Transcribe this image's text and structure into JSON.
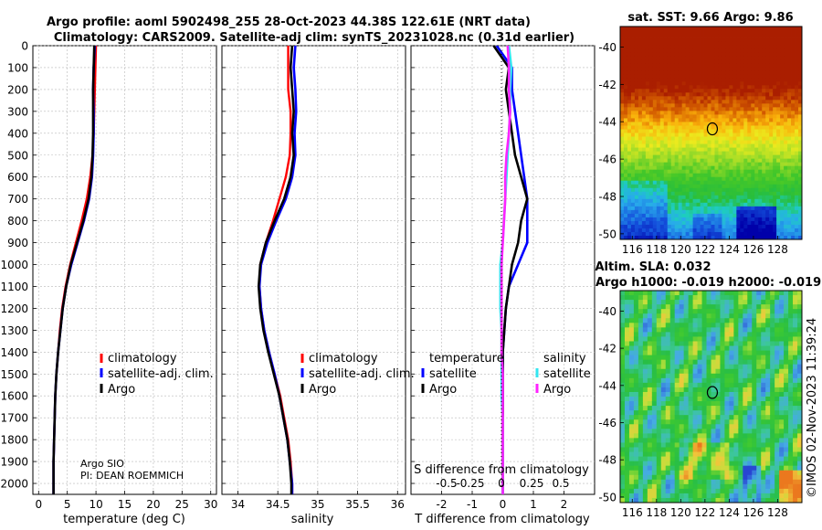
{
  "title": {
    "line1": "Argo profile: aoml 5902498_255 28-Oct-2023 44.38S 122.61E (NRT data)",
    "line2": "Climatology: CARS2009. Satellite-adj clim: synTS_20231028.nc (0.31d earlier)"
  },
  "colors": {
    "climatology": "#ff0000",
    "satellite": "#0000ff",
    "argo": "#000000",
    "sal_satellite": "#33e6f0",
    "sal_argo": "#ff22ff"
  },
  "footnote": {
    "line1": "Argo SIO",
    "line2": "PI: DEAN ROEMMICH"
  },
  "credit": "©IMOS 02-Nov-2023 11:39:24",
  "chart_data": [
    {
      "type": "line",
      "id": "temperature",
      "xlabel": "temperature (deg C)",
      "xlim": [
        -1,
        31
      ],
      "xticks": [
        0,
        5,
        10,
        15,
        20,
        25,
        30
      ],
      "ylim": [
        0,
        2050
      ],
      "yticks": [
        0,
        100,
        200,
        300,
        400,
        500,
        600,
        700,
        800,
        900,
        1000,
        1100,
        1200,
        1300,
        1400,
        1500,
        1600,
        1700,
        1800,
        1900,
        2000
      ],
      "grid": true,
      "legend": [
        "climatology",
        "satellite-adj. clim.",
        "Argo"
      ],
      "legend_position": "lower-right",
      "depth": [
        0,
        100,
        200,
        300,
        400,
        500,
        600,
        700,
        800,
        900,
        1000,
        1100,
        1200,
        1300,
        1400,
        1500,
        1600,
        1700,
        1800,
        1900,
        2000,
        2050
      ],
      "series": [
        {
          "name": "climatology",
          "values": [
            10.0,
            9.9,
            9.8,
            9.7,
            9.6,
            9.4,
            9.0,
            8.4,
            7.5,
            6.5,
            5.5,
            4.7,
            4.1,
            3.7,
            3.4,
            3.1,
            2.9,
            2.8,
            2.7,
            2.6,
            2.6,
            2.6
          ]
        },
        {
          "name": "satellite-adj. clim.",
          "values": [
            9.8,
            9.6,
            9.5,
            9.6,
            9.6,
            9.5,
            9.3,
            8.8,
            7.9,
            6.8,
            5.7,
            4.8,
            4.2,
            3.8,
            3.4,
            3.1,
            2.9,
            2.8,
            2.7,
            2.6,
            2.6,
            2.6
          ]
        },
        {
          "name": "Argo",
          "values": [
            9.7,
            9.6,
            9.5,
            9.5,
            9.5,
            9.4,
            9.2,
            8.7,
            7.8,
            6.7,
            5.6,
            4.8,
            4.2,
            3.8,
            3.4,
            3.1,
            2.9,
            2.8,
            2.7,
            2.6,
            2.6,
            2.6
          ]
        }
      ]
    },
    {
      "type": "line",
      "id": "salinity",
      "xlabel": "salinity",
      "xlim": [
        33.8,
        36.1
      ],
      "xticks": [
        34,
        34.5,
        35,
        35.5,
        36
      ],
      "ylim": [
        0,
        2050
      ],
      "grid": true,
      "legend": [
        "climatology",
        "satellite-adj. clim.",
        "Argo"
      ],
      "legend_position": "lower-right",
      "depth": [
        0,
        100,
        200,
        300,
        400,
        500,
        600,
        700,
        800,
        900,
        1000,
        1100,
        1200,
        1300,
        1400,
        1500,
        1600,
        1700,
        1800,
        1900,
        2000,
        2050
      ],
      "series": [
        {
          "name": "climatology",
          "values": [
            34.63,
            34.63,
            34.63,
            34.66,
            34.66,
            34.65,
            34.6,
            34.52,
            34.44,
            34.35,
            34.28,
            34.27,
            34.29,
            34.33,
            34.39,
            34.46,
            34.53,
            34.58,
            34.63,
            34.66,
            34.68,
            34.68
          ]
        },
        {
          "name": "satellite-adj. clim.",
          "values": [
            34.72,
            34.7,
            34.72,
            34.73,
            34.71,
            34.72,
            34.68,
            34.6,
            34.48,
            34.37,
            34.29,
            34.27,
            34.29,
            34.33,
            34.39,
            34.46,
            34.52,
            34.57,
            34.62,
            34.65,
            34.68,
            34.68
          ]
        },
        {
          "name": "Argo",
          "values": [
            34.68,
            34.66,
            34.68,
            34.7,
            34.68,
            34.7,
            34.66,
            34.58,
            34.46,
            34.35,
            34.28,
            34.26,
            34.28,
            34.32,
            34.38,
            34.45,
            34.52,
            34.57,
            34.62,
            34.65,
            34.67,
            34.67
          ]
        }
      ]
    },
    {
      "type": "line",
      "id": "differences",
      "xlabel": "T difference from climatology",
      "xlabel_top": "S difference from climatology",
      "xlim": [
        -3,
        3
      ],
      "xticks": [
        -2,
        -1,
        0,
        1,
        2
      ],
      "xticks_s": [
        "-0.5",
        "-0.25",
        "0",
        "0.25",
        "0.5"
      ],
      "ylim": [
        0,
        2050
      ],
      "grid": true,
      "legend_t_title": "temperature",
      "legend_s_title": "salinity",
      "legend_t": [
        "satellite",
        "Argo"
      ],
      "legend_s": [
        "satellite",
        "Argo"
      ],
      "depth": [
        0,
        100,
        200,
        300,
        400,
        500,
        600,
        700,
        800,
        900,
        1000,
        1100,
        1200,
        1300,
        1400,
        1500,
        1600,
        1700,
        1800,
        1900,
        2000,
        2050
      ],
      "series": [
        {
          "name": "temperature satellite",
          "values": [
            -0.2,
            0.3,
            0.3,
            0.4,
            0.5,
            0.6,
            0.7,
            0.8,
            0.8,
            0.8,
            0.5,
            0.2,
            0.1,
            0.05,
            0.0,
            0.0,
            0.0,
            0.0,
            0.0,
            0.0,
            0.0,
            0.0
          ]
        },
        {
          "name": "temperature Argo",
          "values": [
            -0.3,
            0.2,
            0.1,
            0.2,
            0.3,
            0.4,
            0.6,
            0.8,
            0.6,
            0.5,
            0.3,
            0.2,
            0.1,
            0.05,
            0.0,
            0.0,
            0.0,
            0.0,
            0.0,
            0.0,
            0.0,
            0.0
          ]
        },
        {
          "name": "salinity satellite",
          "values": [
            0.05,
            0.07,
            0.06,
            0.06,
            0.05,
            0.04,
            0.03,
            0.02,
            0.01,
            0.0,
            -0.02,
            -0.02,
            -0.02,
            -0.01,
            -0.01,
            -0.01,
            -0.01,
            0.0,
            0.0,
            0.0,
            0.0,
            0.0
          ]
        },
        {
          "name": "salinity Argo",
          "values": [
            0.04,
            0.05,
            0.05,
            0.06,
            0.05,
            0.03,
            0.02,
            0.02,
            0.01,
            0.0,
            -0.01,
            -0.01,
            -0.01,
            -0.01,
            -0.01,
            0.0,
            0.0,
            0.0,
            0.0,
            0.0,
            0.0,
            0.0
          ]
        }
      ]
    },
    {
      "type": "heatmap",
      "id": "sst_map",
      "title": "sat. SST: 9.66 Argo: 9.86",
      "xticks": [
        "116",
        "118",
        "120",
        "122",
        "124",
        "126",
        "128"
      ],
      "yticks": [
        "-40",
        "-42",
        "-44",
        "-46",
        "-48",
        "-50"
      ],
      "xlim": [
        115,
        130
      ],
      "ylim": [
        -50.3,
        -38.9
      ],
      "marker": {
        "lon": 122.61,
        "lat": -44.38
      }
    },
    {
      "type": "heatmap",
      "id": "sla_map",
      "title": "Altim. SLA: 0.032",
      "subtitle": "Argo h1000: -0.019 h2000: -0.019",
      "xticks": [
        "116",
        "118",
        "120",
        "122",
        "124",
        "126",
        "128"
      ],
      "yticks": [
        "-40",
        "-42",
        "-44",
        "-46",
        "-48",
        "-50"
      ],
      "xlim": [
        115,
        130
      ],
      "ylim": [
        -50.3,
        -38.9
      ],
      "marker": {
        "lon": 122.61,
        "lat": -44.38
      }
    }
  ]
}
